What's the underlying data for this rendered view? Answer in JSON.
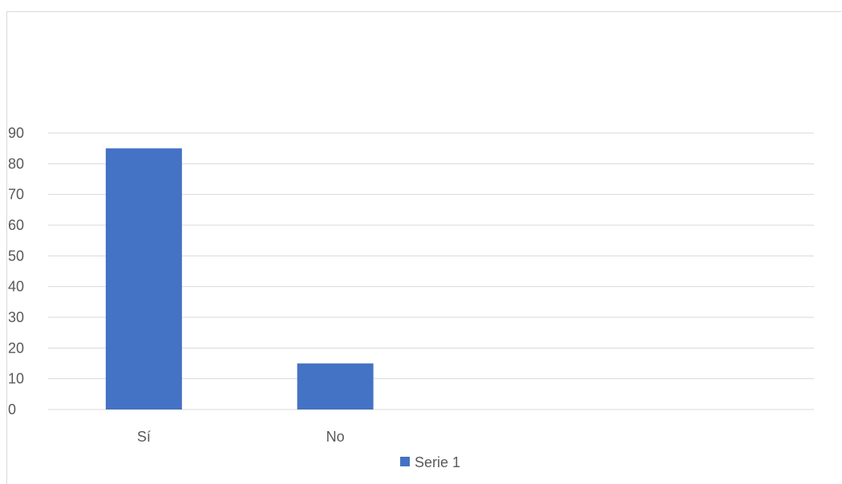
{
  "chart_data": {
    "type": "bar",
    "categories": [
      "Sí",
      "No",
      "",
      ""
    ],
    "series": [
      {
        "name": "Serie 1",
        "values": [
          85,
          15,
          null,
          null
        ],
        "color": "#4472c4"
      }
    ],
    "ylim": [
      0,
      90
    ],
    "yticks": [
      "0",
      "10",
      "20",
      "30",
      "40",
      "50",
      "60",
      "70",
      "80",
      "90"
    ],
    "grid": true,
    "legend_position": "bottom"
  }
}
